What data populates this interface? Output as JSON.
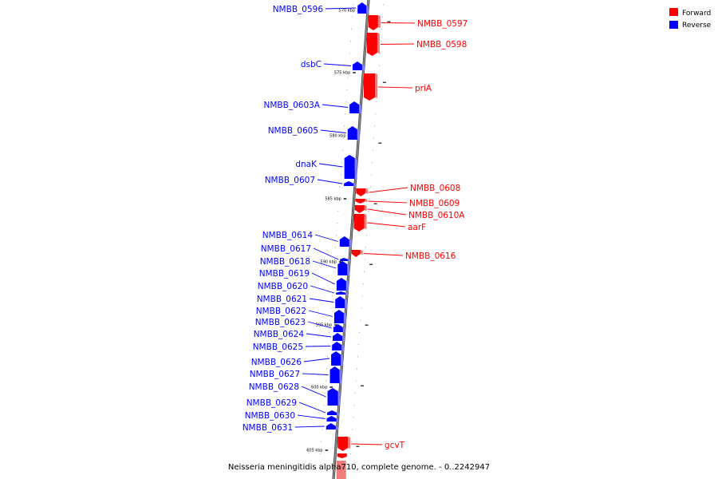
{
  "colors": {
    "forward": "#ff0000",
    "forward_light": "#f07c7c",
    "reverse": "#0000ff",
    "reverse_light": "#7f7fff",
    "backbone": "#8a8a8a",
    "backbone_edge": "#3c3c3c"
  },
  "legend": {
    "forward_label": "Forward",
    "reverse_label": "Reverse"
  },
  "caption": "Neisseria meningitidis alpha710, complete genome. - 0..2242947",
  "scale_labels": [
    "570 kbp",
    "575 kbp",
    "580 kbp",
    "585 kbp",
    "590 kbp",
    "595 kbp",
    "600 kbp",
    "605 kbp"
  ],
  "genes": [
    {
      "name": "NMBB_0596",
      "strand": "reverse"
    },
    {
      "name": "NMBB_0597",
      "strand": "forward"
    },
    {
      "name": "NMBB_0598",
      "strand": "forward"
    },
    {
      "name": "dsbC",
      "strand": "reverse"
    },
    {
      "name": "priA",
      "strand": "forward"
    },
    {
      "name": "NMBB_0603A",
      "strand": "reverse"
    },
    {
      "name": "NMBB_0605",
      "strand": "reverse"
    },
    {
      "name": "dnaK",
      "strand": "reverse"
    },
    {
      "name": "NMBB_0607",
      "strand": "reverse"
    },
    {
      "name": "NMBB_0608",
      "strand": "forward"
    },
    {
      "name": "NMBB_0609",
      "strand": "forward"
    },
    {
      "name": "NMBB_0610A",
      "strand": "forward"
    },
    {
      "name": "aarF",
      "strand": "forward"
    },
    {
      "name": "NMBB_0614",
      "strand": "reverse"
    },
    {
      "name": "NMBB_0616",
      "strand": "forward"
    },
    {
      "name": "NMBB_0617",
      "strand": "reverse"
    },
    {
      "name": "NMBB_0618",
      "strand": "reverse"
    },
    {
      "name": "NMBB_0619",
      "strand": "reverse"
    },
    {
      "name": "NMBB_0620",
      "strand": "reverse"
    },
    {
      "name": "NMBB_0621",
      "strand": "reverse"
    },
    {
      "name": "NMBB_0622",
      "strand": "reverse"
    },
    {
      "name": "NMBB_0623",
      "strand": "reverse"
    },
    {
      "name": "NMBB_0624",
      "strand": "reverse"
    },
    {
      "name": "NMBB_0625",
      "strand": "reverse"
    },
    {
      "name": "NMBB_0626",
      "strand": "reverse"
    },
    {
      "name": "NMBB_0627",
      "strand": "reverse"
    },
    {
      "name": "NMBB_0628",
      "strand": "reverse"
    },
    {
      "name": "NMBB_0629",
      "strand": "reverse"
    },
    {
      "name": "NMBB_0630",
      "strand": "reverse"
    },
    {
      "name": "NMBB_0631",
      "strand": "reverse"
    },
    {
      "name": "gcvT",
      "strand": "forward"
    }
  ]
}
